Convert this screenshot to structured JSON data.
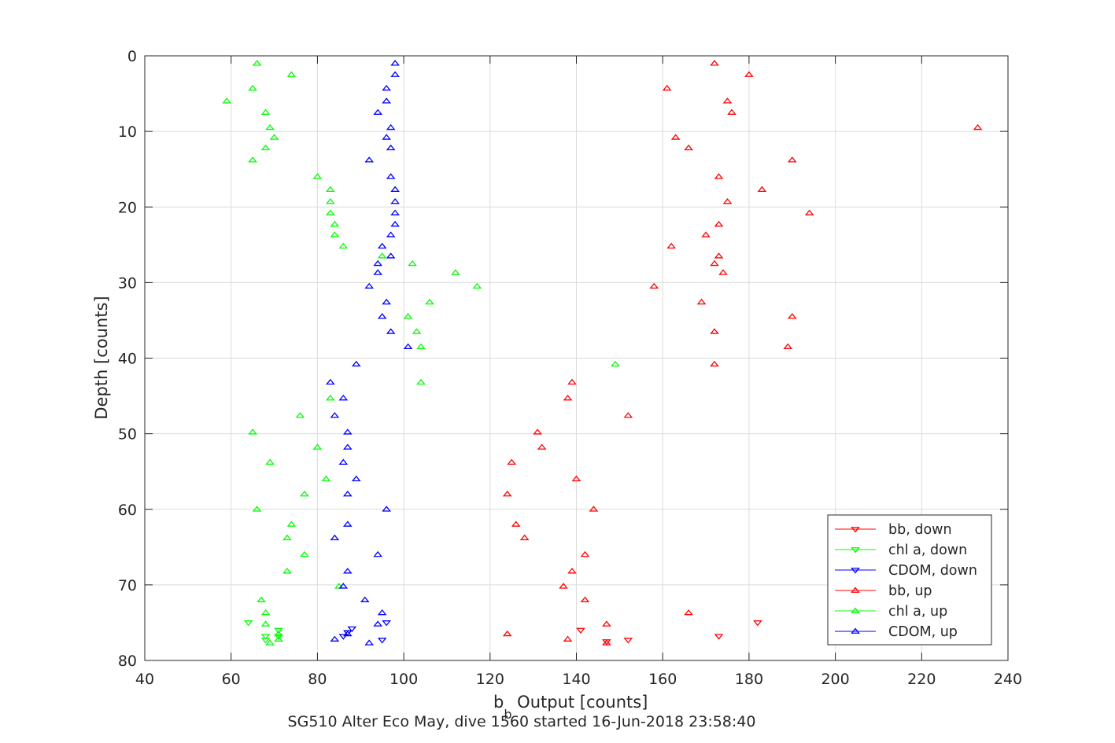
{
  "chart_data": {
    "type": "scatter",
    "xlabel_main": "b",
    "xlabel_sub": "b",
    "xlabel_rest": " Output [counts]",
    "ylabel": "Depth [counts]",
    "caption": "SG510 Alter Eco May, dive 1560 started 16-Jun-2018 23:58:40",
    "xlim": [
      40,
      240
    ],
    "ylim": [
      0,
      80
    ],
    "y_reversed": true,
    "grid": true,
    "legend_position": "lower-right",
    "xticks": [
      "40",
      "60",
      "80",
      "100",
      "120",
      "140",
      "160",
      "180",
      "200",
      "220",
      "240"
    ],
    "yticks": [
      "0",
      "10",
      "20",
      "30",
      "40",
      "50",
      "60",
      "70",
      "80"
    ],
    "series": [
      {
        "name": "bb, down",
        "color": "#ff0000",
        "marker": "triangle-down",
        "points": [
          [
            141,
            76
          ],
          [
            147,
            77.5
          ],
          [
            152,
            77.3
          ],
          [
            173,
            76.8
          ],
          [
            182,
            75
          ]
        ]
      },
      {
        "name": "chl a, down",
        "color": "#00ff00",
        "marker": "triangle-down",
        "points": [
          [
            64,
            75
          ],
          [
            68,
            76.8
          ],
          [
            68,
            77.3
          ],
          [
            71,
            76
          ],
          [
            71,
            76.8
          ]
        ]
      },
      {
        "name": "CDOM, down",
        "color": "#0000ff",
        "marker": "triangle-down",
        "points": [
          [
            86,
            76.8
          ],
          [
            87,
            76.3
          ],
          [
            88,
            75.8
          ],
          [
            95,
            77.3
          ],
          [
            96,
            75
          ]
        ]
      },
      {
        "name": "bb, up",
        "color": "#ff0000",
        "marker": "triangle-up",
        "points": [
          [
            172,
            1
          ],
          [
            180,
            2.5
          ],
          [
            161,
            4.3
          ],
          [
            175,
            6
          ],
          [
            176,
            7.5
          ],
          [
            233,
            9.5
          ],
          [
            163,
            10.8
          ],
          [
            166,
            12.2
          ],
          [
            190,
            13.8
          ],
          [
            173,
            16
          ],
          [
            183,
            17.7
          ],
          [
            175,
            19.3
          ],
          [
            194,
            20.8
          ],
          [
            173,
            22.3
          ],
          [
            170,
            23.7
          ],
          [
            162,
            25.2
          ],
          [
            173,
            26.5
          ],
          [
            172,
            27.5
          ],
          [
            174,
            28.7
          ],
          [
            158,
            30.5
          ],
          [
            169,
            32.6
          ],
          [
            190,
            34.5
          ],
          [
            172,
            36.5
          ],
          [
            189,
            38.5
          ],
          [
            172,
            40.8
          ],
          [
            139,
            43.2
          ],
          [
            138,
            45.3
          ],
          [
            152,
            47.6
          ],
          [
            131,
            49.8
          ],
          [
            132,
            51.8
          ],
          [
            125,
            53.8
          ],
          [
            140,
            56
          ],
          [
            124,
            58
          ],
          [
            144,
            60
          ],
          [
            126,
            62
          ],
          [
            128,
            63.8
          ],
          [
            142,
            66
          ],
          [
            139,
            68.2
          ],
          [
            137,
            70.2
          ],
          [
            142,
            72
          ],
          [
            166,
            73.7
          ],
          [
            147,
            75.2
          ],
          [
            124,
            76.5
          ],
          [
            138,
            77.2
          ],
          [
            147,
            77.7
          ]
        ]
      },
      {
        "name": "chl a, up",
        "color": "#00ff00",
        "marker": "triangle-up",
        "points": [
          [
            66,
            1
          ],
          [
            74,
            2.5
          ],
          [
            65,
            4.3
          ],
          [
            59,
            6
          ],
          [
            68,
            7.5
          ],
          [
            69,
            9.5
          ],
          [
            70,
            10.8
          ],
          [
            68,
            12.2
          ],
          [
            65,
            13.8
          ],
          [
            80,
            16
          ],
          [
            83,
            17.7
          ],
          [
            83,
            19.3
          ],
          [
            83,
            20.8
          ],
          [
            84,
            22.3
          ],
          [
            84,
            23.7
          ],
          [
            86,
            25.2
          ],
          [
            95,
            26.5
          ],
          [
            102,
            27.5
          ],
          [
            112,
            28.7
          ],
          [
            117,
            30.5
          ],
          [
            106,
            32.6
          ],
          [
            101,
            34.5
          ],
          [
            103,
            36.5
          ],
          [
            104,
            38.5
          ],
          [
            149,
            40.8
          ],
          [
            104,
            43.2
          ],
          [
            83,
            45.3
          ],
          [
            76,
            47.6
          ],
          [
            65,
            49.8
          ],
          [
            80,
            51.8
          ],
          [
            69,
            53.8
          ],
          [
            82,
            56
          ],
          [
            77,
            58
          ],
          [
            66,
            60
          ],
          [
            74,
            62
          ],
          [
            73,
            63.8
          ],
          [
            77,
            66
          ],
          [
            73,
            68.2
          ],
          [
            85,
            70.2
          ],
          [
            67,
            72
          ],
          [
            68,
            73.7
          ],
          [
            68,
            75.2
          ],
          [
            71,
            76.5
          ],
          [
            71,
            77.2
          ],
          [
            69,
            77.7
          ]
        ]
      },
      {
        "name": "CDOM, up",
        "color": "#0000ff",
        "marker": "triangle-up",
        "points": [
          [
            98,
            1
          ],
          [
            98,
            2.5
          ],
          [
            96,
            4.3
          ],
          [
            96,
            6
          ],
          [
            94,
            7.5
          ],
          [
            97,
            9.5
          ],
          [
            96,
            10.8
          ],
          [
            97,
            12.2
          ],
          [
            92,
            13.8
          ],
          [
            97,
            16
          ],
          [
            98,
            17.7
          ],
          [
            98,
            19.3
          ],
          [
            98,
            20.8
          ],
          [
            98,
            22.3
          ],
          [
            97,
            23.7
          ],
          [
            95,
            25.2
          ],
          [
            97,
            26.5
          ],
          [
            94,
            27.5
          ],
          [
            94,
            28.7
          ],
          [
            92,
            30.5
          ],
          [
            96,
            32.6
          ],
          [
            95,
            34.5
          ],
          [
            97,
            36.5
          ],
          [
            101,
            38.5
          ],
          [
            89,
            40.8
          ],
          [
            83,
            43.2
          ],
          [
            86,
            45.3
          ],
          [
            84,
            47.6
          ],
          [
            87,
            49.8
          ],
          [
            87,
            51.8
          ],
          [
            86,
            53.8
          ],
          [
            89,
            56
          ],
          [
            87,
            58
          ],
          [
            96,
            60
          ],
          [
            87,
            62
          ],
          [
            84,
            63.8
          ],
          [
            94,
            66
          ],
          [
            87,
            68.2
          ],
          [
            86,
            70.2
          ],
          [
            91,
            72
          ],
          [
            95,
            73.7
          ],
          [
            94,
            75.2
          ],
          [
            87,
            76.5
          ],
          [
            84,
            77.2
          ],
          [
            92,
            77.7
          ]
        ]
      }
    ]
  }
}
